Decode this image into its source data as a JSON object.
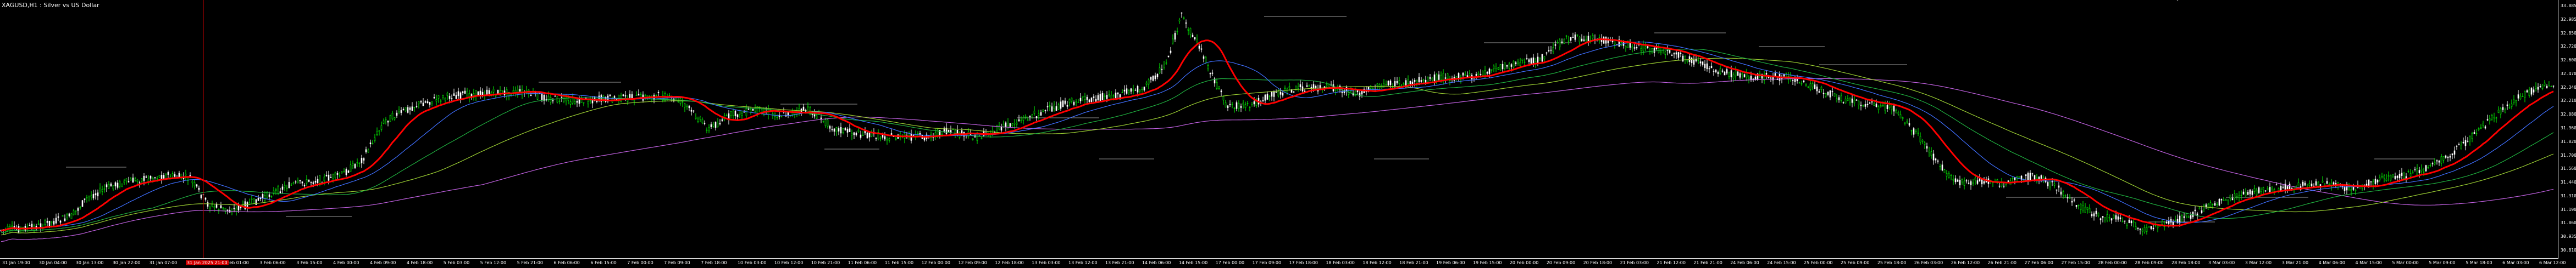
{
  "window": {
    "title": "XAGUSD,H1 : Silver vs US Dollar",
    "top_glyph": "ˇ"
  },
  "colors": {
    "background": "#000000",
    "bull_candle": "#00ff00",
    "bear_candle": "#ffffff",
    "red_ma": "#ff0000",
    "blue_ma": "#3f6fff",
    "green_ma": "#1fae3f",
    "yellow_green_ma": "#9acd32",
    "violet_ma": "#c060e0",
    "level_lines": "#9a9a9a",
    "cursor_line": "#c00000"
  },
  "price_scale": {
    "labels": [
      "33.085",
      "32.985",
      "32.850",
      "32.720",
      "32.600",
      "32.470",
      "32.340",
      "32.210",
      "32.080",
      "31.960",
      "31.820",
      "31.700",
      "31.560",
      "31.440",
      "31.310",
      "31.190",
      "31.060",
      "30.935",
      "30.810"
    ]
  },
  "time_scale": {
    "labels": [
      "31 Jan 19:00",
      "30 Jan 04:00",
      "30 Jan 13:00",
      "30 Jan 22:00",
      "31 Jan 07:00",
      "31 Jan 16:00",
      "1 Feb 01:00",
      "3 Feb 06:00",
      "3 Feb 15:00",
      "4 Feb 00:00",
      "4 Feb 09:00",
      "4 Feb 18:00",
      "5 Feb 03:00",
      "5 Feb 12:00",
      "5 Feb 21:00",
      "6 Feb 06:00",
      "6 Feb 15:00",
      "7 Feb 00:00",
      "7 Feb 09:00",
      "7 Feb 18:00",
      "10 Feb 03:00",
      "10 Feb 12:00",
      "10 Feb 21:00",
      "11 Feb 06:00",
      "11 Feb 15:00",
      "12 Feb 00:00",
      "12 Feb 09:00",
      "12 Feb 18:00",
      "13 Feb 03:00",
      "13 Feb 12:00",
      "13 Feb 21:00",
      "14 Feb 06:00",
      "14 Feb 15:00",
      "17 Feb 00:00",
      "17 Feb 09:00",
      "17 Feb 18:00",
      "18 Feb 03:00",
      "18 Feb 12:00",
      "18 Feb 21:00",
      "19 Feb 06:00",
      "19 Feb 15:00",
      "20 Feb 00:00",
      "20 Feb 09:00",
      "20 Feb 18:00",
      "21 Feb 03:00",
      "21 Feb 12:00",
      "21 Feb 21:00",
      "24 Feb 06:00",
      "24 Feb 15:00",
      "25 Feb 00:00",
      "25 Feb 09:00",
      "25 Feb 18:00",
      "26 Feb 03:00",
      "26 Feb 12:00",
      "26 Feb 21:00",
      "27 Feb 06:00",
      "27 Feb 15:00",
      "28 Feb 00:00",
      "28 Feb 09:00",
      "28 Feb 18:00",
      "3 Mar 03:00",
      "3 Mar 12:00",
      "3 Mar 21:00",
      "4 Mar 06:00",
      "4 Mar 15:00",
      "5 Mar 00:00",
      "5 Mar 09:00",
      "5 Mar 18:00",
      "6 Mar 03:00",
      "6 Mar 12:00"
    ],
    "active_label": "31 Jan 2025 21:00",
    "active_index": 6
  },
  "cursor": {
    "time": "31 Jan 2025 21:00"
  }
}
